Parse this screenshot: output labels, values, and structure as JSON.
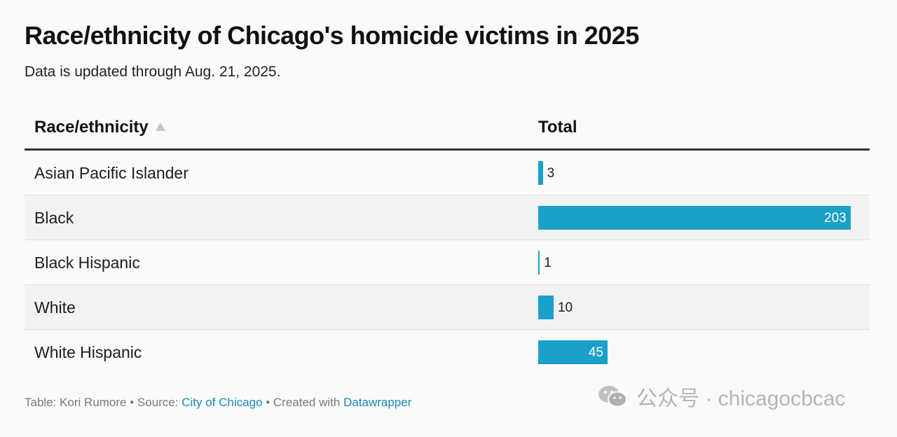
{
  "title": "Race/ethnicity of Chicago's homicide victims in 2025",
  "subtitle": "Data is updated through Aug. 21, 2025.",
  "table": {
    "headers": {
      "race": "Race/ethnicity",
      "total": "Total"
    }
  },
  "chart_data": {
    "type": "table",
    "title": "Race/ethnicity of Chicago's homicide victims in 2025",
    "columns": [
      "Race/ethnicity",
      "Total"
    ],
    "categories": [
      "Asian Pacific Islander",
      "Black",
      "Black Hispanic",
      "White",
      "White Hispanic"
    ],
    "values": [
      3,
      203,
      1,
      10,
      45
    ],
    "bar_color": "#1aa1ca",
    "sorted_by": "Race/ethnicity ascending"
  },
  "footer": {
    "prefix": "Table: Kori Rumore • Source: ",
    "source_link": "City of Chicago",
    "middle": " • Created with ",
    "tool_link": "Datawrapper"
  },
  "watermark": {
    "text": "公众号 · chicagocbcac",
    "icon": "wechat-icon"
  },
  "colors": {
    "bar": "#1aa1ca",
    "link": "#1a8ab5",
    "stripe": "#f2f2f2"
  }
}
